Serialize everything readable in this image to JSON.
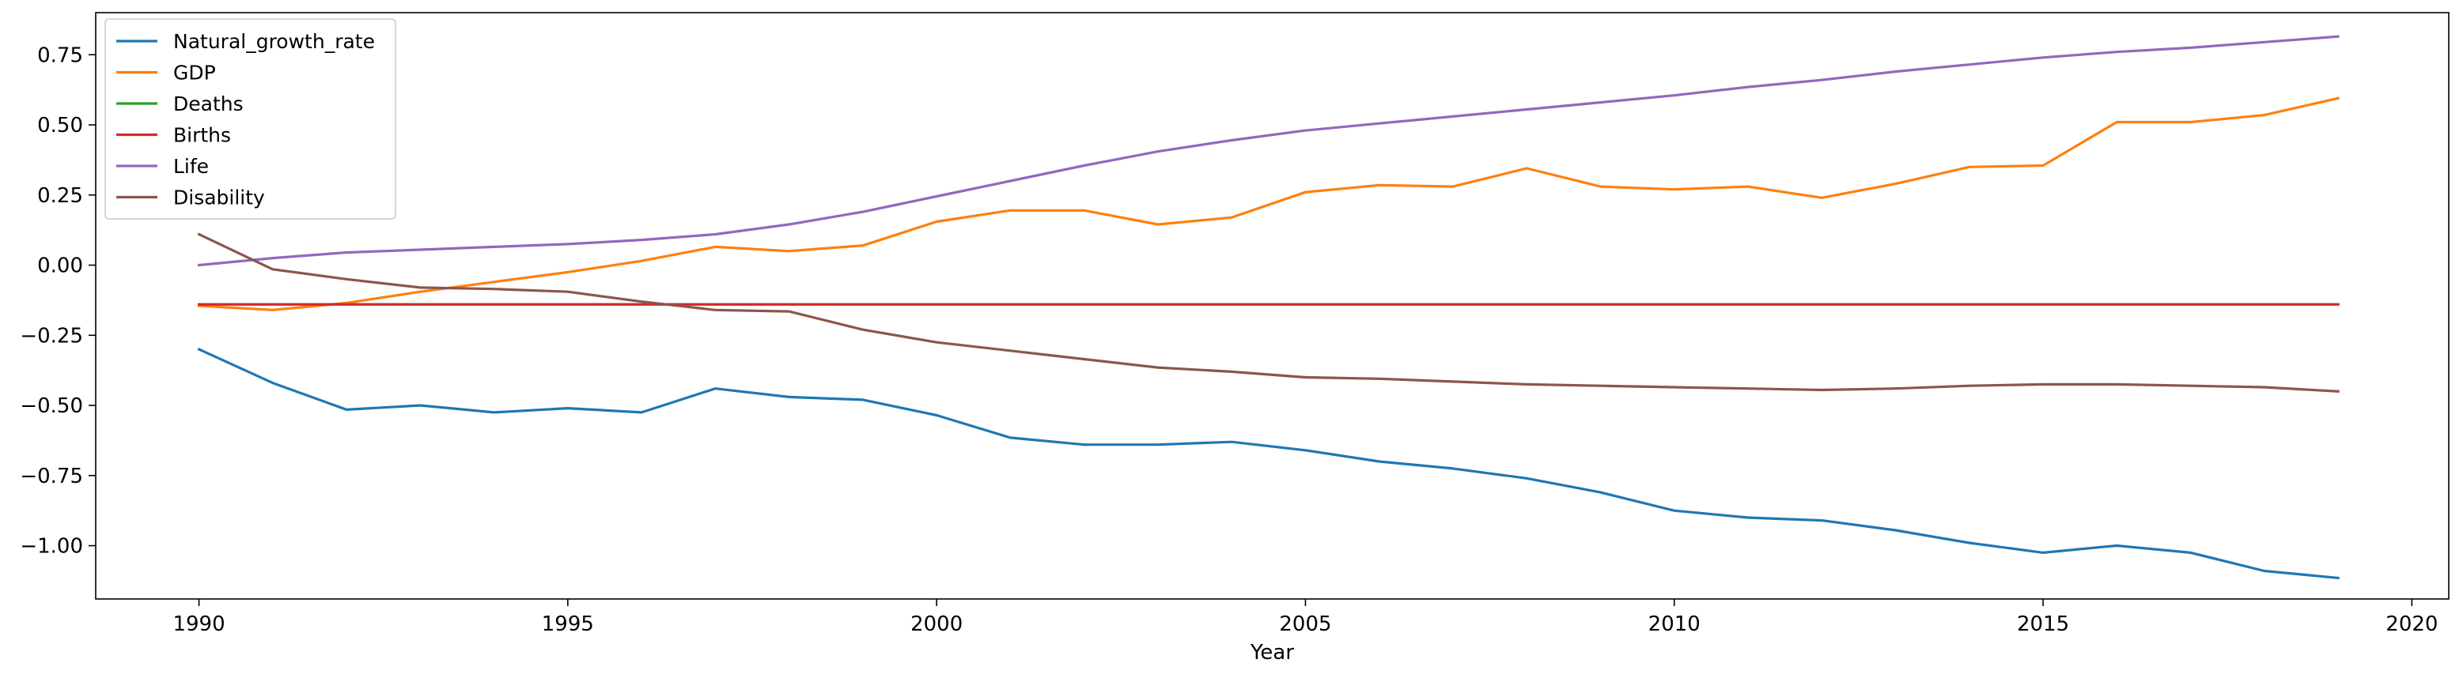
{
  "chart_data": {
    "type": "line",
    "title": "",
    "xlabel": "Year",
    "ylabel": "",
    "xlim": [
      1988.6,
      2020.5
    ],
    "ylim": [
      -1.19,
      0.9
    ],
    "x_ticks": [
      1990,
      1995,
      2000,
      2005,
      2010,
      2015,
      2020
    ],
    "y_ticks": [
      -1.0,
      -0.75,
      -0.5,
      -0.25,
      0.0,
      0.25,
      0.5,
      0.75
    ],
    "y_tick_labels": [
      "−1.00",
      "−0.75",
      "−0.50",
      "−0.25",
      "0.00",
      "0.25",
      "0.50",
      "0.75"
    ],
    "grid": false,
    "legend_position": "top-left",
    "x": [
      1990,
      1991,
      1992,
      1993,
      1994,
      1995,
      1996,
      1997,
      1998,
      1999,
      2000,
      2001,
      2002,
      2003,
      2004,
      2005,
      2006,
      2007,
      2008,
      2009,
      2010,
      2011,
      2012,
      2013,
      2014,
      2015,
      2016,
      2017,
      2018,
      2019
    ],
    "series": [
      {
        "name": "Natural_growth_rate",
        "color": "#1f77b4",
        "values": [
          -0.3,
          -0.42,
          -0.515,
          -0.5,
          -0.525,
          -0.51,
          -0.525,
          -0.44,
          -0.47,
          -0.48,
          -0.535,
          -0.615,
          -0.64,
          -0.64,
          -0.63,
          -0.66,
          -0.7,
          -0.725,
          -0.76,
          -0.81,
          -0.875,
          -0.9,
          -0.91,
          -0.945,
          -0.99,
          -1.025,
          -1.0,
          -1.025,
          -1.09,
          -1.115
        ]
      },
      {
        "name": "GDP",
        "color": "#ff7f0e",
        "values": [
          -0.145,
          -0.16,
          -0.135,
          -0.095,
          -0.06,
          -0.025,
          0.015,
          0.065,
          0.05,
          0.07,
          0.155,
          0.195,
          0.195,
          0.145,
          0.17,
          0.26,
          0.285,
          0.28,
          0.345,
          0.28,
          0.27,
          0.28,
          0.24,
          0.29,
          0.35,
          0.355,
          0.51,
          0.51,
          0.535,
          0.595
        ]
      },
      {
        "name": "Deaths",
        "color": "#2ca02c",
        "values": [
          -0.14,
          -0.14,
          -0.14,
          -0.14,
          -0.14,
          -0.14,
          -0.14,
          -0.14,
          -0.14,
          -0.14,
          -0.14,
          -0.14,
          -0.14,
          -0.14,
          -0.14,
          -0.14,
          -0.14,
          -0.14,
          -0.14,
          -0.14,
          -0.14,
          -0.14,
          -0.14,
          -0.14,
          -0.14,
          -0.14,
          -0.14,
          -0.14,
          -0.14,
          -0.14
        ]
      },
      {
        "name": "Births",
        "color": "#d62728",
        "values": [
          -0.14,
          -0.14,
          -0.14,
          -0.14,
          -0.14,
          -0.14,
          -0.14,
          -0.14,
          -0.14,
          -0.14,
          -0.14,
          -0.14,
          -0.14,
          -0.14,
          -0.14,
          -0.14,
          -0.14,
          -0.14,
          -0.14,
          -0.14,
          -0.14,
          -0.14,
          -0.14,
          -0.14,
          -0.14,
          -0.14,
          -0.14,
          -0.14,
          -0.14,
          -0.14
        ]
      },
      {
        "name": "Life",
        "color": "#9467bd",
        "values": [
          0.0,
          0.025,
          0.045,
          0.055,
          0.065,
          0.075,
          0.09,
          0.11,
          0.145,
          0.19,
          0.245,
          0.3,
          0.355,
          0.405,
          0.445,
          0.48,
          0.505,
          0.53,
          0.555,
          0.58,
          0.605,
          0.635,
          0.66,
          0.69,
          0.715,
          0.74,
          0.76,
          0.775,
          0.795,
          0.815
        ]
      },
      {
        "name": "Disability",
        "color": "#8c564b",
        "values": [
          0.11,
          -0.015,
          -0.05,
          -0.08,
          -0.085,
          -0.095,
          -0.13,
          -0.16,
          -0.165,
          -0.23,
          -0.275,
          -0.305,
          -0.335,
          -0.365,
          -0.38,
          -0.4,
          -0.405,
          -0.415,
          -0.425,
          -0.43,
          -0.435,
          -0.44,
          -0.445,
          -0.44,
          -0.43,
          -0.425,
          -0.425,
          -0.43,
          -0.435,
          -0.45
        ]
      }
    ]
  }
}
